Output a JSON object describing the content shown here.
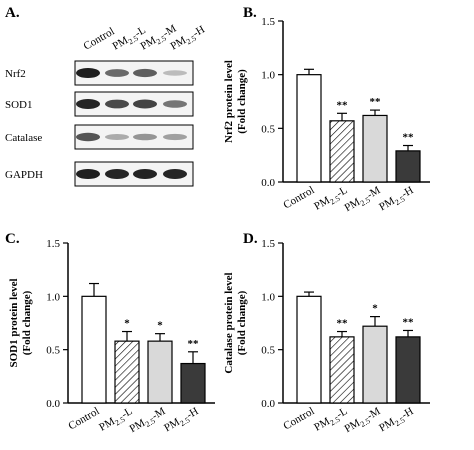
{
  "western_blot": {
    "letter": "A.",
    "headers": [
      "Control",
      "PM2.5-L",
      "PM2.5-M",
      "PM2.5-H"
    ],
    "rows": [
      {
        "label": "Nrf2",
        "intensity": [
          0.95,
          0.6,
          0.65,
          0.22
        ]
      },
      {
        "label": "SOD1",
        "intensity": [
          0.92,
          0.75,
          0.78,
          0.55
        ]
      },
      {
        "label": "Catalase",
        "intensity": [
          0.7,
          0.3,
          0.4,
          0.35
        ]
      },
      {
        "label": "GAPDH",
        "intensity": [
          0.95,
          0.92,
          0.93,
          0.92
        ]
      }
    ]
  },
  "chart_data": [
    {
      "type": "bar",
      "letter": "B.",
      "categories": [
        "Control",
        "PM2.5-L",
        "PM2.5-M",
        "PM2.5-H"
      ],
      "values": [
        1.0,
        0.57,
        0.62,
        0.29
      ],
      "errors": [
        0.05,
        0.07,
        0.05,
        0.05
      ],
      "significance": [
        "",
        "**",
        "**",
        "**"
      ],
      "ylabel_line1": "Nrf2 protein level",
      "ylabel_line2": "(Fold change)",
      "ylim": [
        0,
        1.5
      ],
      "yticks": [
        "0.0",
        "0.5",
        "1.0",
        "1.5"
      ]
    },
    {
      "type": "bar",
      "letter": "C.",
      "categories": [
        "Control",
        "PM2.5-L",
        "PM2.5-M",
        "PM2.5-H"
      ],
      "values": [
        1.0,
        0.58,
        0.58,
        0.37
      ],
      "errors": [
        0.12,
        0.09,
        0.07,
        0.11
      ],
      "significance": [
        "",
        "*",
        "*",
        "**"
      ],
      "ylabel_line1": "SOD1 protein level",
      "ylabel_line2": "(Fold change)",
      "ylim": [
        0,
        1.5
      ],
      "yticks": [
        "0.0",
        "0.5",
        "1.0",
        "1.5"
      ]
    },
    {
      "type": "bar",
      "letter": "D.",
      "categories": [
        "Control",
        "PM2.5-L",
        "PM2.5-M",
        "PM2.5-H"
      ],
      "values": [
        1.0,
        0.62,
        0.72,
        0.62
      ],
      "errors": [
        0.04,
        0.05,
        0.09,
        0.06
      ],
      "significance": [
        "",
        "**",
        "*",
        "**"
      ],
      "ylabel_line1": "Catalase protein level",
      "ylabel_line2": "(Fold change)",
      "ylim": [
        0,
        1.5
      ],
      "yticks": [
        "0.0",
        "0.5",
        "1.0",
        "1.5"
      ]
    }
  ],
  "bar_styles": [
    "white",
    "hatched",
    "lightgray",
    "dark"
  ],
  "colors": {
    "light": "#d9d9d9",
    "dark": "#3a3a3a",
    "axis": "#000000"
  }
}
